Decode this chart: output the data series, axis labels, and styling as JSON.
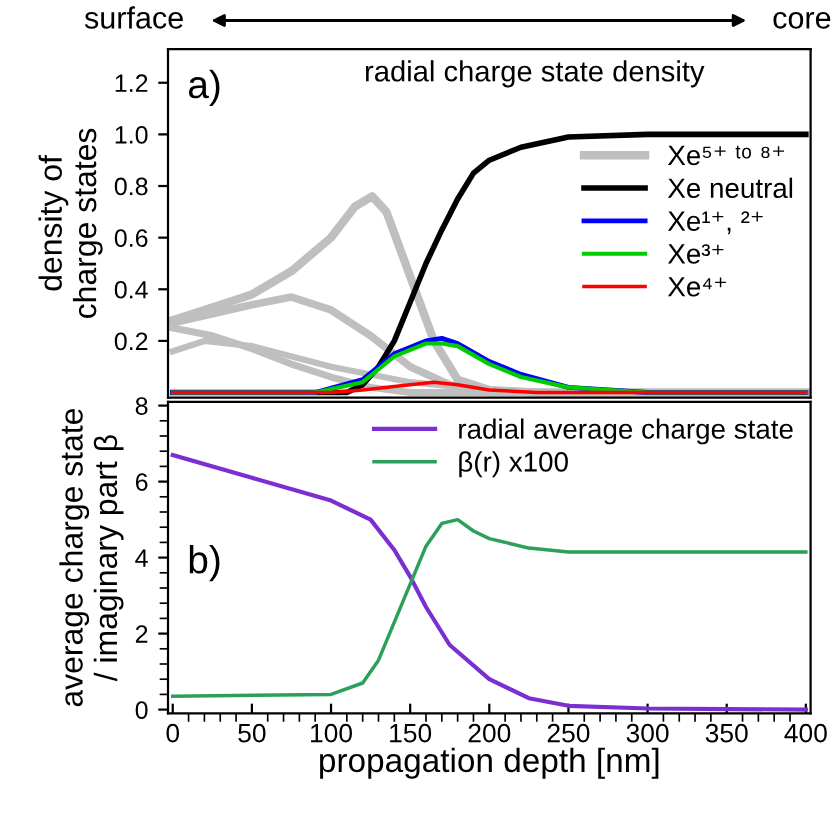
{
  "chart_data": [
    {
      "type": "line",
      "title": "radial charge state density",
      "ylabel": "density of\ncharge states",
      "xlim": [
        -3,
        403
      ],
      "ylim": [
        -0.02,
        1.33
      ],
      "yticks": [
        0.2,
        0.4,
        0.6,
        0.8,
        {
          "value": 1,
          "label": "1.0"
        },
        1.2
      ],
      "tick_labels": "y",
      "legend": "right",
      "grid": false,
      "annotations": [
        "surface",
        "core",
        "a)"
      ],
      "series": [
        {
          "name": "Xe⁵⁺ ᵗᵒ ⁸⁺",
          "color": "#bfbfbf",
          "x": [
            0,
            25,
            50,
            75,
            100,
            115,
            126,
            135,
            150,
            165,
            180,
            200,
            230,
            400
          ],
          "values": [
            0.28,
            0.33,
            0.38,
            0.47,
            0.6,
            0.72,
            0.76,
            0.7,
            0.45,
            0.2,
            0.05,
            0.01,
            0,
            0
          ]
        },
        {
          "color": "#bfbfbf",
          "x": [
            0,
            50,
            75,
            100,
            125,
            150,
            175,
            200,
            400
          ],
          "values": [
            0.27,
            0.34,
            0.37,
            0.32,
            0.22,
            0.1,
            0.03,
            0,
            0
          ]
        },
        {
          "color": "#bfbfbf",
          "x": [
            0,
            25,
            50,
            75,
            100,
            125,
            150,
            400
          ],
          "values": [
            0.25,
            0.22,
            0.17,
            0.11,
            0.06,
            0.02,
            0,
            0
          ]
        },
        {
          "color": "#bfbfbf",
          "x": [
            0,
            20,
            50,
            100,
            150,
            200,
            250,
            400
          ],
          "values": [
            0.16,
            0.2,
            0.18,
            0.1,
            0.04,
            0.01,
            0,
            0
          ]
        },
        {
          "name": "Xe neutral",
          "color": "#000000",
          "x": [
            0,
            110,
            120,
            130,
            140,
            150,
            160,
            170,
            180,
            190,
            200,
            220,
            250,
            300,
            400
          ],
          "values": [
            0,
            0,
            0.03,
            0.1,
            0.2,
            0.35,
            0.5,
            0.63,
            0.75,
            0.85,
            0.9,
            0.95,
            0.99,
            1.0,
            1.0
          ]
        },
        {
          "name": "Xe¹⁺, ²⁺",
          "color": "#0000ff",
          "x": [
            0,
            90,
            120,
            140,
            160,
            170,
            180,
            200,
            220,
            250,
            300,
            400
          ],
          "values": [
            0,
            0,
            0.05,
            0.15,
            0.2,
            0.21,
            0.19,
            0.12,
            0.07,
            0.02,
            0,
            0
          ]
        },
        {
          "name": "Xe³⁺",
          "color": "#00cc00",
          "x": [
            0,
            90,
            120,
            140,
            160,
            170,
            180,
            200,
            220,
            250,
            300,
            400
          ],
          "values": [
            0,
            0,
            0.04,
            0.14,
            0.19,
            0.19,
            0.18,
            0.11,
            0.06,
            0.02,
            0,
            0
          ]
        },
        {
          "name": "Xe⁴⁺",
          "color": "#ff0000",
          "x": [
            0,
            100,
            120,
            150,
            165,
            180,
            200,
            230,
            400
          ],
          "values": [
            0,
            0,
            0.01,
            0.03,
            0.04,
            0.03,
            0.01,
            0,
            0
          ]
        }
      ]
    },
    {
      "type": "line",
      "xlabel": "propagation depth [nm]",
      "ylabel": "average charge state\n/ imaginary part β",
      "xlim": [
        -3,
        403
      ],
      "xticks": [
        0,
        50,
        100,
        150,
        200,
        250,
        300,
        350,
        400
      ],
      "ylim": [
        -0.1,
        8.1
      ],
      "yticks": [
        0,
        2,
        4,
        6,
        8
      ],
      "legend": "top right",
      "grid": false,
      "annotations": [
        "b)"
      ],
      "series": [
        {
          "name": "radial average charge state",
          "color": "#7b2fd0",
          "x": [
            0,
            50,
            100,
            125,
            140,
            150,
            160,
            175,
            200,
            225,
            250,
            300,
            400
          ],
          "values": [
            6.7,
            6.1,
            5.5,
            5.0,
            4.2,
            3.5,
            2.7,
            1.7,
            0.8,
            0.3,
            0.1,
            0.03,
            0
          ]
        },
        {
          "name": "β(r) x100",
          "color": "#2ca05a",
          "x": [
            0,
            100,
            120,
            130,
            140,
            150,
            160,
            170,
            180,
            190,
            200,
            225,
            250,
            400
          ],
          "values": [
            0.35,
            0.4,
            0.7,
            1.3,
            2.3,
            3.3,
            4.3,
            4.9,
            5.0,
            4.7,
            4.5,
            4.25,
            4.15,
            4.15
          ]
        }
      ]
    }
  ]
}
